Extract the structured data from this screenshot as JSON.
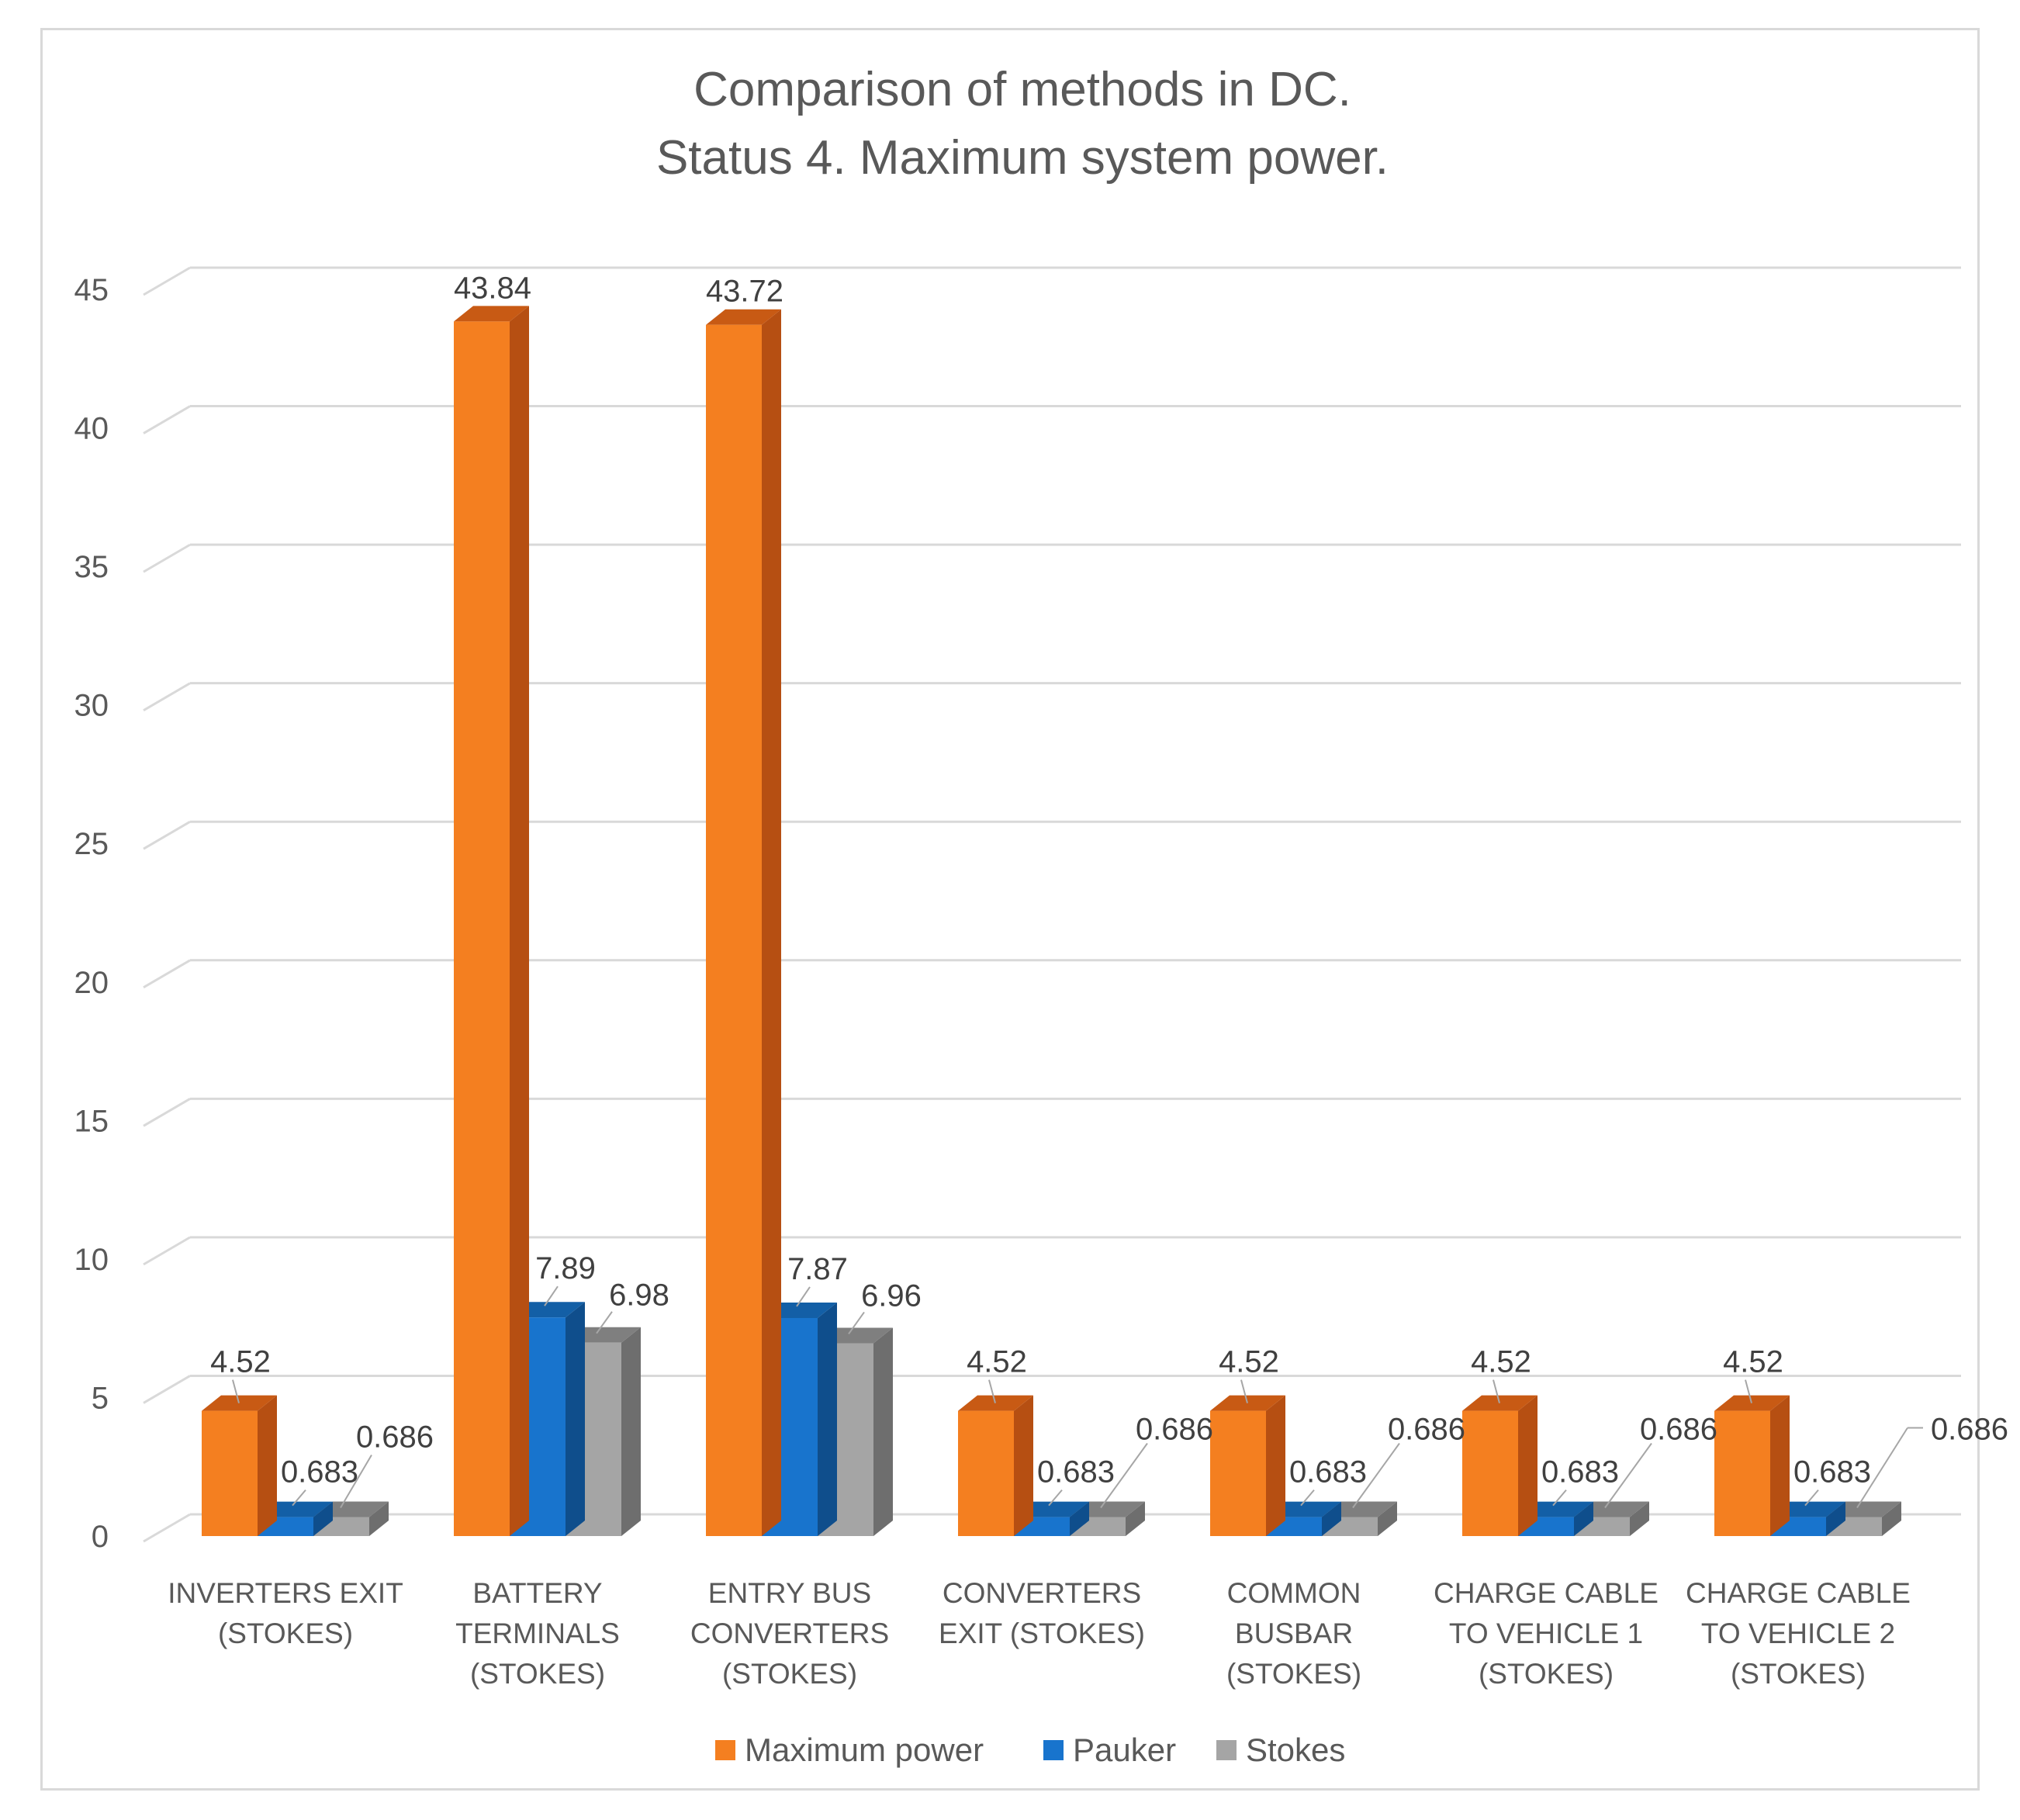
{
  "chart_data": {
    "type": "bar",
    "title": [
      "Comparison of methods in DC.",
      "Status 4. Maximum system power."
    ],
    "xlabel": "",
    "ylabel": "",
    "ylim": [
      0,
      45
    ],
    "yticks": [
      0,
      5,
      10,
      15,
      20,
      25,
      30,
      35,
      40,
      45
    ],
    "grid": true,
    "legend_position": "bottom",
    "categories": [
      [
        "INVERTERS EXIT",
        "(STOKES)"
      ],
      [
        "BATTERY",
        "TERMINALS",
        "(STOKES)"
      ],
      [
        "ENTRY BUS",
        "CONVERTERS",
        "(STOKES)"
      ],
      [
        "CONVERTERS",
        "EXIT  (STOKES)"
      ],
      [
        "COMMON",
        "BUSBAR",
        "(STOKES)"
      ],
      [
        "CHARGE CABLE",
        "TO VEHICLE 1",
        "(STOKES)"
      ],
      [
        "CHARGE CABLE",
        "TO VEHICLE 2",
        "(STOKES)"
      ]
    ],
    "series": [
      {
        "name": "Maximum power",
        "color": "#F47F20",
        "side_color": "#B64F12",
        "top_color": "#C85A14",
        "values": [
          4.52,
          43.84,
          43.72,
          4.52,
          4.52,
          4.52,
          4.52
        ],
        "labels": [
          "4.52",
          "43.84",
          "43.72",
          "4.52",
          "4.52",
          "4.52",
          "4.52"
        ]
      },
      {
        "name": "Pauker",
        "color": "#1874CD",
        "side_color": "#0F4E8C",
        "top_color": "#135FA6",
        "values": [
          0.683,
          7.89,
          7.87,
          0.683,
          0.683,
          0.683,
          0.683
        ],
        "labels": [
          "0.683",
          "7.89",
          "7.87",
          "0.683",
          "0.683",
          "0.683",
          "0.683"
        ]
      },
      {
        "name": "Stokes",
        "color": "#A5A5A5",
        "side_color": "#6E6E6E",
        "top_color": "#7F7F7F",
        "values": [
          0.686,
          6.98,
          6.96,
          0.686,
          0.686,
          0.686,
          0.686
        ],
        "labels": [
          "0.686",
          "6.98",
          "6.96",
          "0.686",
          "0.686",
          "0.686",
          "0.686"
        ]
      }
    ]
  }
}
